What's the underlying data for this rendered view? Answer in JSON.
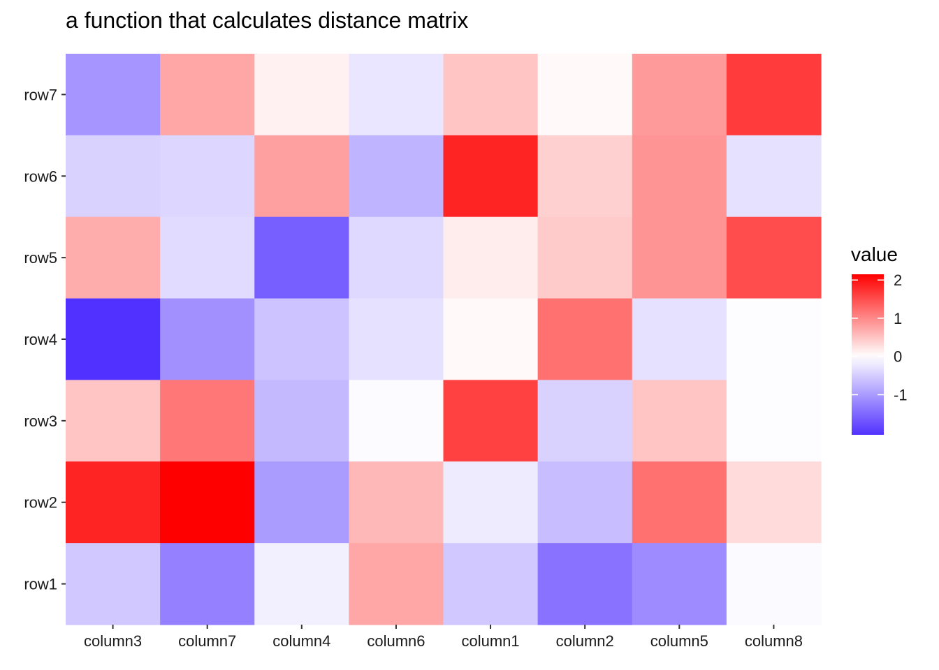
{
  "chart_data": {
    "type": "heatmap",
    "title": "a function that calculates distance matrix",
    "xlabel": "",
    "ylabel": "",
    "columns": [
      "column3",
      "column7",
      "column4",
      "column6",
      "column1",
      "column2",
      "column5",
      "column8"
    ],
    "rows": [
      "row7",
      "row6",
      "row5",
      "row4",
      "row3",
      "row2",
      "row1"
    ],
    "values": [
      [
        -1.05,
        0.75,
        0.12,
        -0.25,
        0.5,
        0.05,
        0.85,
        1.65
      ],
      [
        -0.45,
        -0.4,
        0.8,
        -0.75,
        1.85,
        0.4,
        0.9,
        -0.3
      ],
      [
        0.7,
        -0.35,
        -1.6,
        -0.38,
        0.15,
        0.45,
        0.9,
        1.5
      ],
      [
        -2.05,
        -1.1,
        -0.6,
        -0.3,
        0.05,
        1.2,
        -0.3,
        -0.02
      ],
      [
        0.5,
        1.15,
        -0.7,
        -0.04,
        1.6,
        -0.45,
        0.5,
        -0.02
      ],
      [
        1.85,
        2.15,
        -1.0,
        0.6,
        -0.2,
        -0.65,
        1.2,
        0.3
      ],
      [
        -0.55,
        -1.25,
        -0.15,
        0.75,
        -0.55,
        -1.4,
        -1.15,
        -0.05
      ]
    ],
    "legend": {
      "title": "value",
      "ticks": [
        2,
        1,
        0,
        -1
      ],
      "tick_labels": [
        "2",
        "1",
        "0",
        "-1"
      ],
      "min": -2.05,
      "max": 2.15,
      "position": "right"
    },
    "colors": {
      "low": "#5131FF",
      "mid": "#FFFFFF",
      "high": "#FF0000"
    },
    "grid": false
  }
}
